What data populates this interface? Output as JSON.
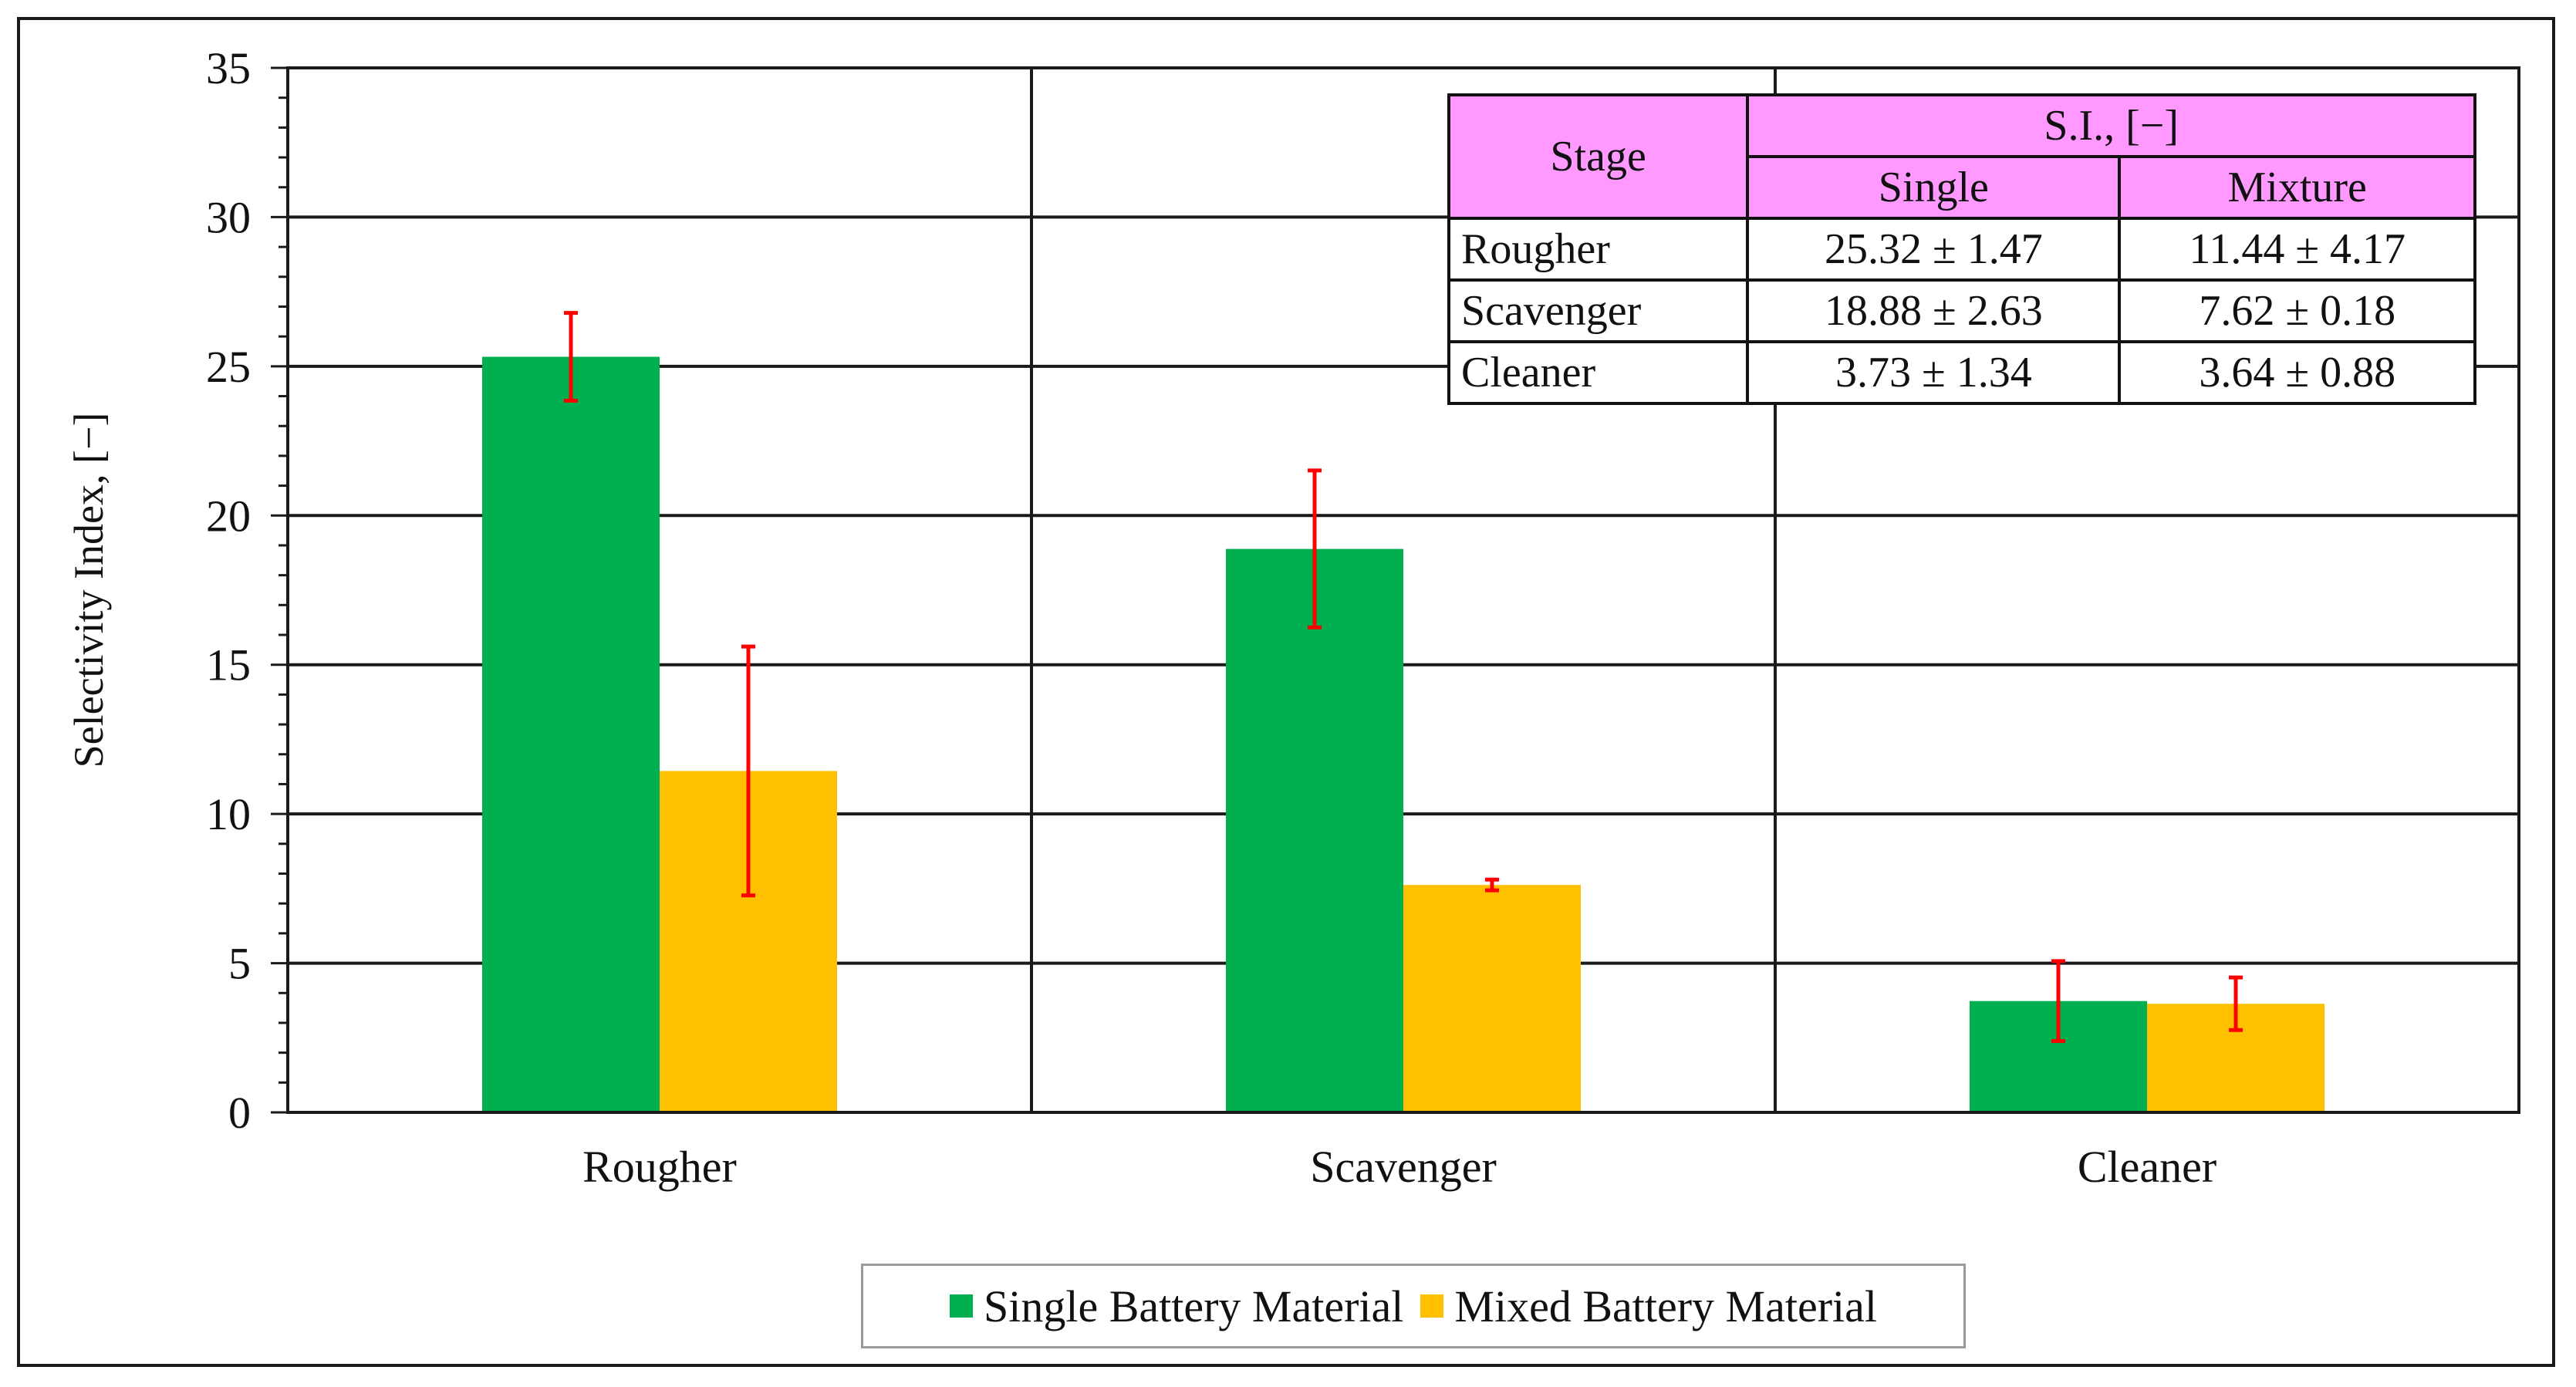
{
  "chart_data": {
    "type": "bar",
    "title": "",
    "xlabel": "",
    "ylabel": "Selectivity Index, [−]",
    "ylim": [
      0,
      35
    ],
    "yticks": [
      0,
      5,
      10,
      15,
      20,
      25,
      30,
      35
    ],
    "grid": true,
    "categories": [
      "Rougher",
      "Scavenger",
      "Cleaner"
    ],
    "series": [
      {
        "name": "Single Battery Material",
        "color": "#00b050",
        "values": [
          25.32,
          18.88,
          3.73
        ],
        "errors": [
          1.47,
          2.63,
          1.34
        ]
      },
      {
        "name": "Mixed Battery Material",
        "color": "#ffc000",
        "values": [
          11.44,
          7.62,
          3.64
        ],
        "errors": [
          4.17,
          0.18,
          0.88
        ]
      }
    ],
    "error_bar_color": "#ff0000",
    "legend_position": "bottom"
  },
  "table": {
    "header_stage": "Stage",
    "header_si": "S.I., [−]",
    "header_single": "Single",
    "header_mixture": "Mixture",
    "header_color": "#ff99ff",
    "rows": [
      {
        "stage": "Rougher",
        "single": "25.32 ± 1.47",
        "mixture": "11.44 ± 4.17"
      },
      {
        "stage": "Scavenger",
        "single": "18.88 ± 2.63",
        "mixture": "7.62 ± 0.18"
      },
      {
        "stage": "Cleaner",
        "single": "3.73 ± 1.34",
        "mixture": "3.64 ± 0.88"
      }
    ]
  }
}
